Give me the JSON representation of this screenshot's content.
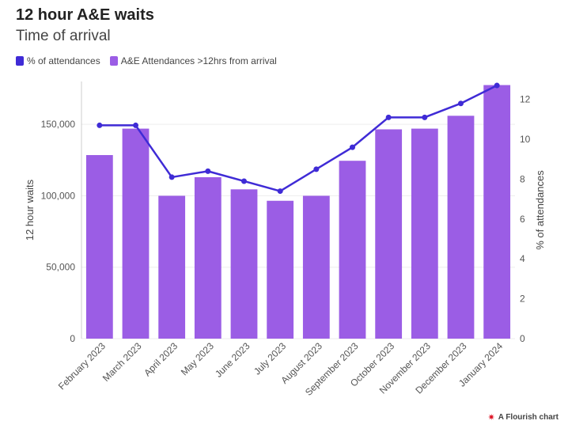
{
  "title": "12 hour A&E waits",
  "subtitle": "Time of arrival",
  "legend": {
    "line_label": "% of attendances",
    "bar_label": "A&E Attendances >12hrs from arrival"
  },
  "credit": "A Flourish chart",
  "colors": {
    "bar": "#9b5de5",
    "line": "#3f2bd6",
    "grid": "#eeeeee"
  },
  "chart_data": {
    "type": "bar",
    "categories": [
      "February 2023",
      "March 2023",
      "April 2023",
      "May 2023",
      "June 2023",
      "July 2023",
      "August 2023",
      "September 2023",
      "October 2023",
      "November 2023",
      "December 2023",
      "January 2024"
    ],
    "series": [
      {
        "name": "A&E Attendances >12hrs from arrival",
        "type": "bar",
        "axis": "left",
        "values": [
          128500,
          147000,
          100000,
          113000,
          104500,
          96500,
          100000,
          124500,
          146500,
          147000,
          156000,
          177500
        ]
      },
      {
        "name": "% of attendances",
        "type": "line",
        "axis": "right",
        "values": [
          10.7,
          10.7,
          8.1,
          8.4,
          7.9,
          7.4,
          8.5,
          9.6,
          11.1,
          11.1,
          11.8,
          12.7
        ]
      }
    ],
    "ylabel": "12 hour waits",
    "y2label": "% of attendances",
    "ylim": [
      0,
      180000
    ],
    "y2lim": [
      0,
      12.9
    ],
    "yticks": [
      0,
      50000,
      100000,
      150000
    ],
    "ytick_labels": [
      "0",
      "50,000",
      "100,000",
      "150,000"
    ],
    "y2ticks": [
      0,
      2,
      4,
      6,
      8,
      10,
      12
    ],
    "y2tick_labels": [
      "0",
      "2",
      "4",
      "6",
      "8",
      "10",
      "12"
    ],
    "grid": true,
    "legend_position": "top-left"
  }
}
